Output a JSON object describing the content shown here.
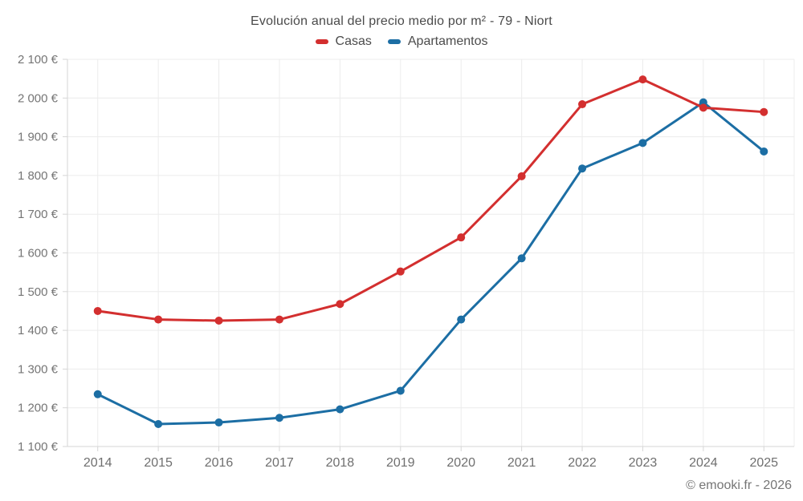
{
  "header": {
    "title": "Evolución anual del precio medio por m² - 79 - Niort"
  },
  "legend": {
    "items": [
      {
        "label": "Casas",
        "color": "#d32f2f"
      },
      {
        "label": "Apartamentos",
        "color": "#1c6ea4"
      }
    ]
  },
  "footer": {
    "credit": "© emooki.fr - 2026"
  },
  "colors": {
    "casas": "#d32f2f",
    "apartamentos": "#1c6ea4",
    "gridline": "#ececec",
    "axis_border": "#d6d6d6",
    "tick_label": "#757575"
  },
  "chart_data": {
    "type": "line",
    "title": "Evolución anual del precio medio por m² - 79 - Niort",
    "categories": [
      "2014",
      "2015",
      "2016",
      "2017",
      "2018",
      "2019",
      "2020",
      "2021",
      "2022",
      "2023",
      "2024",
      "2025"
    ],
    "series": [
      {
        "name": "Casas",
        "color": "#d32f2f",
        "values": [
          1450,
          1428,
          1425,
          1428,
          1468,
          1552,
          1640,
          1798,
          1984,
          2048,
          1975,
          1964
        ]
      },
      {
        "name": "Apartamentos",
        "color": "#1c6ea4",
        "values": [
          1235,
          1158,
          1162,
          1174,
          1196,
          1244,
          1428,
          1586,
          1818,
          1884,
          1989,
          1862
        ]
      }
    ],
    "xlabel": "",
    "ylabel": "",
    "ylim": [
      1100,
      2100
    ],
    "ytick_step": 100,
    "ytick_labels": [
      "1 100 €",
      "1 200 €",
      "1 300 €",
      "1 400 €",
      "1 500 €",
      "1 600 €",
      "1 700 €",
      "1 800 €",
      "1 900 €",
      "2 000 €",
      "2 100 €"
    ],
    "grid": true,
    "legend_position": "top",
    "marker_radius": 5,
    "line_width": 3
  }
}
